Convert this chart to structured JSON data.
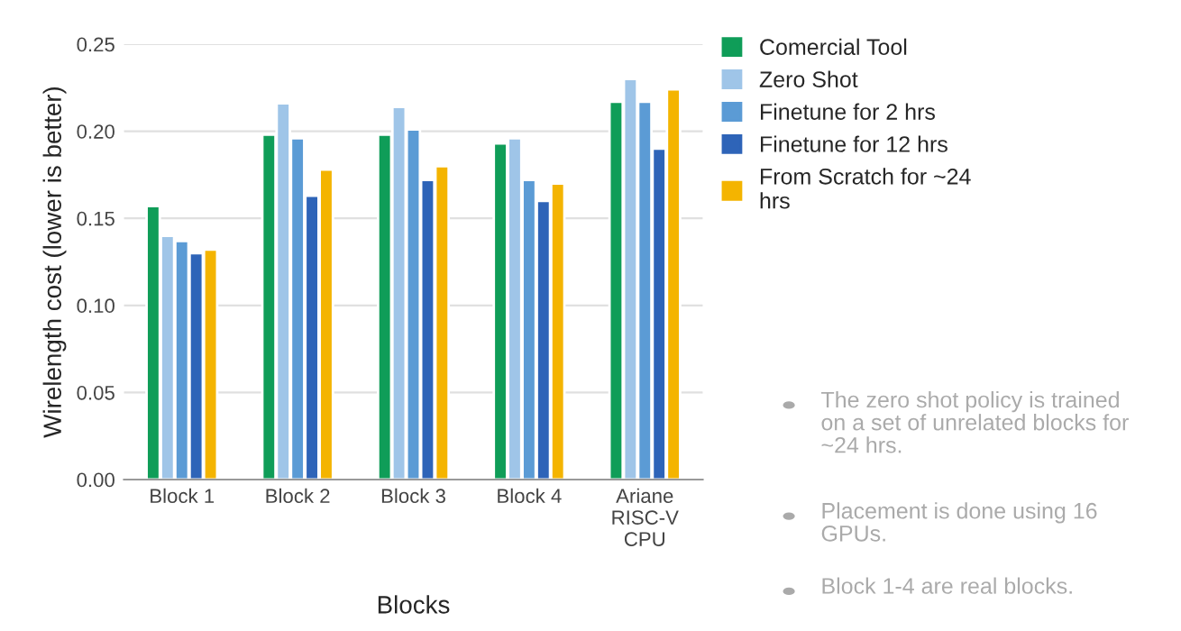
{
  "chart_data": {
    "type": "bar",
    "xlabel": "Blocks",
    "ylabel": "Wirelength cost (lower is better)",
    "categories": [
      "Block 1",
      "Block 2",
      "Block 3",
      "Block 4",
      "Ariane\nRISC-V\nCPU"
    ],
    "series": [
      {
        "name": "Comercial Tool",
        "color": "#0f9d58",
        "values": [
          0.157,
          0.198,
          0.198,
          0.193,
          0.217
        ]
      },
      {
        "name": "Zero Shot",
        "color": "#9fc5e8",
        "values": [
          0.14,
          0.216,
          0.214,
          0.196,
          0.23
        ]
      },
      {
        "name": "Finetune for 2 hrs",
        "color": "#5b9bd5",
        "values": [
          0.137,
          0.196,
          0.201,
          0.172,
          0.217
        ]
      },
      {
        "name": "Finetune for 12 hrs",
        "color": "#2e64b8",
        "values": [
          0.13,
          0.163,
          0.172,
          0.16,
          0.19
        ]
      },
      {
        "name": "From Scratch for ~24\nhrs",
        "color": "#f4b400",
        "values": [
          0.132,
          0.178,
          0.18,
          0.17,
          0.224
        ]
      }
    ],
    "ylim": [
      0,
      0.25
    ],
    "yticks": [
      {
        "value": 0,
        "label": "0.00"
      },
      {
        "value": 0.05,
        "label": "0.05"
      },
      {
        "value": 0.1,
        "label": "0.10"
      },
      {
        "value": 0.15,
        "label": "0.15"
      },
      {
        "value": 0.2,
        "label": "0.20"
      },
      {
        "value": 0.25,
        "label": "0.25"
      }
    ],
    "grid": "y",
    "legend": "right",
    "annotations": [
      "The zero shot policy is trained\non a set of unrelated blocks for\n~24 hrs.",
      "Placement is done using 16\nGPUs.",
      "Block 1-4 are real blocks."
    ]
  }
}
